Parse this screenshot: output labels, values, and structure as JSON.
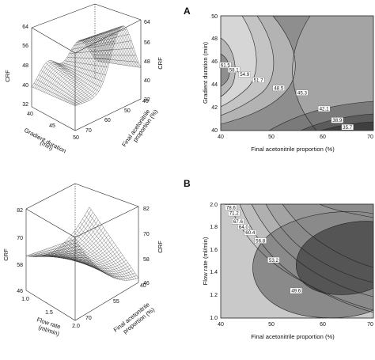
{
  "chart_data": [
    {
      "id": "A_surface",
      "type": "surface3d",
      "zlabel": "CRF",
      "zlabel_right": "CRF",
      "xlabel": [
        "Gradient duration",
        "(min)"
      ],
      "ylabel": [
        "Final acetonitrile",
        "proportion (%)"
      ],
      "x_ticks": [
        "40",
        "45",
        "50"
      ],
      "y_ticks": [
        "40",
        "50",
        "60",
        "70"
      ],
      "z_ticks_left": [
        "32",
        "40",
        "48",
        "56",
        "64"
      ],
      "z_ticks_right": [
        "64",
        "56",
        "48",
        "40",
        "32"
      ]
    },
    {
      "id": "A_contour",
      "type": "contour",
      "panel_label": "A",
      "xlabel": "Final acetonitrile proportion (%)",
      "ylabel": "Gradient duration (min)",
      "xlim": [
        40,
        70
      ],
      "ylim": [
        40,
        50
      ],
      "x_ticks": [
        "40",
        "50",
        "60",
        "70"
      ],
      "y_ticks": [
        "40",
        "42",
        "44",
        "46",
        "48",
        "50"
      ],
      "contour_labels": [
        {
          "text": "61.5",
          "x": 40.9,
          "y": 45.7
        },
        {
          "text": "58.1",
          "x": 42.6,
          "y": 45.3
        },
        {
          "text": "54.9",
          "x": 44.7,
          "y": 44.9
        },
        {
          "text": "51.7",
          "x": 47.4,
          "y": 44.4
        },
        {
          "text": "48.5",
          "x": 51.4,
          "y": 43.7
        },
        {
          "text": "45.3",
          "x": 56.0,
          "y": 43.3
        },
        {
          "text": "42.1",
          "x": 60.3,
          "y": 41.9
        },
        {
          "text": "38.9",
          "x": 62.9,
          "y": 40.9
        },
        {
          "text": "35.7",
          "x": 64.9,
          "y": 40.3
        }
      ]
    },
    {
      "id": "B_surface",
      "type": "surface3d",
      "zlabel": "CRF",
      "zlabel_right": "CRF",
      "xlabel": [
        "Flow rate",
        "(ml/min)"
      ],
      "ylabel": [
        "Final acetonitrile",
        "proportion (%)"
      ],
      "x_ticks": [
        "1.0",
        "1.5",
        "2.0"
      ],
      "y_ticks": [
        "40",
        "55",
        "70"
      ],
      "z_ticks_left": [
        "46",
        "58",
        "70",
        "82"
      ],
      "z_ticks_right": [
        "82",
        "70",
        "58",
        "46"
      ]
    },
    {
      "id": "B_contour",
      "type": "contour",
      "panel_label": "B",
      "xlabel": "Final acetonitrile proportion (%)",
      "ylabel": "Flow rate (ml/min)",
      "xlim": [
        40,
        70
      ],
      "ylim": [
        1.0,
        2.0
      ],
      "x_ticks": [
        "40",
        "50",
        "60",
        "70"
      ],
      "y_ticks": [
        "1.0",
        "1.2",
        "1.4",
        "1.6",
        "1.8",
        "2.0"
      ],
      "contour_labels": [
        {
          "text": "78.6",
          "x": 42.0,
          "y": 1.97
        },
        {
          "text": "71.2",
          "x": 42.6,
          "y": 1.92
        },
        {
          "text": "67.6",
          "x": 43.4,
          "y": 1.85
        },
        {
          "text": "64.0",
          "x": 44.5,
          "y": 1.8
        },
        {
          "text": "60.4",
          "x": 45.8,
          "y": 1.75
        },
        {
          "text": "56.8",
          "x": 47.8,
          "y": 1.68
        },
        {
          "text": "53.2",
          "x": 50.4,
          "y": 1.51
        },
        {
          "text": "49.6",
          "x": 54.8,
          "y": 1.24
        }
      ]
    }
  ]
}
